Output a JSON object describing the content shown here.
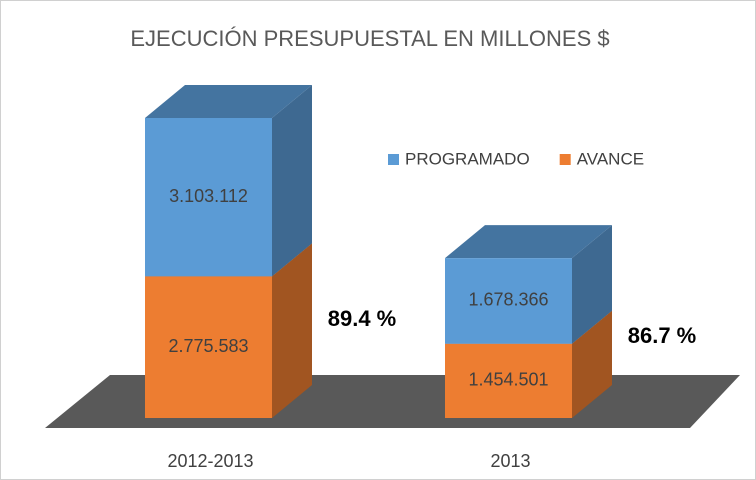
{
  "chart_data": {
    "type": "bar3d_stacked",
    "title": "EJECUCIÓN PRESUPUESTAL EN MILLONES $",
    "categories": [
      "2012-2013",
      "2013"
    ],
    "series": [
      {
        "name": "PROGRAMADO",
        "color": "#5b9bd5",
        "values": [
          3103112,
          1678366
        ],
        "value_labels": [
          "3.103.112",
          "1.678.366"
        ]
      },
      {
        "name": "AVANCE",
        "color": "#ed7d31",
        "values": [
          2775583,
          1454501
        ],
        "value_labels": [
          "2.775.583",
          "1.454.501"
        ]
      }
    ],
    "annotations": [
      "89.4 %",
      "86.7 %"
    ],
    "legend": "top-right"
  }
}
